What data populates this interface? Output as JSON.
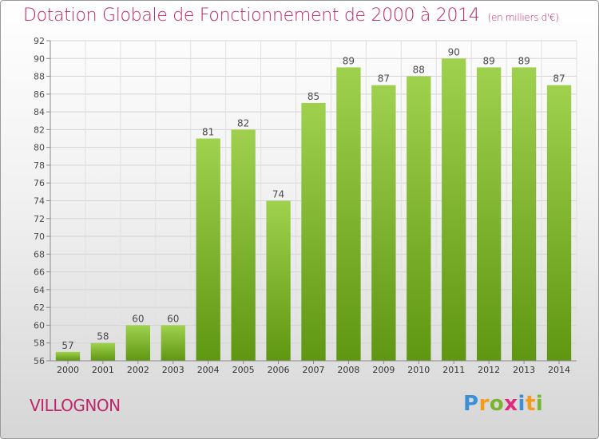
{
  "header": {
    "title": "Dotation Globale de Fonctionnement de 2000 à 2014",
    "unit": "(en milliers d'€)"
  },
  "footer": {
    "commune": "VILLOGNON",
    "logo_text": "Proxiti"
  },
  "colors": {
    "accent": "#c0246a",
    "bar_top": "#9fd14e",
    "bar_bottom": "#5f9612"
  },
  "chart_data": {
    "type": "bar",
    "title": "Dotation Globale de Fonctionnement de 2000 à 2014",
    "subtitle": "(en milliers d'€)",
    "categories": [
      "2000",
      "2001",
      "2002",
      "2003",
      "2004",
      "2005",
      "2006",
      "2007",
      "2008",
      "2009",
      "2010",
      "2011",
      "2012",
      "2013",
      "2014"
    ],
    "values": [
      57,
      58,
      60,
      60,
      81,
      82,
      74,
      85,
      89,
      87,
      88,
      90,
      89,
      89,
      87
    ],
    "ylim": [
      56,
      92
    ],
    "yticks": [
      56,
      58,
      60,
      62,
      64,
      66,
      68,
      70,
      72,
      74,
      76,
      78,
      80,
      82,
      84,
      86,
      88,
      90,
      92
    ],
    "grid": true,
    "data_labels": true
  }
}
